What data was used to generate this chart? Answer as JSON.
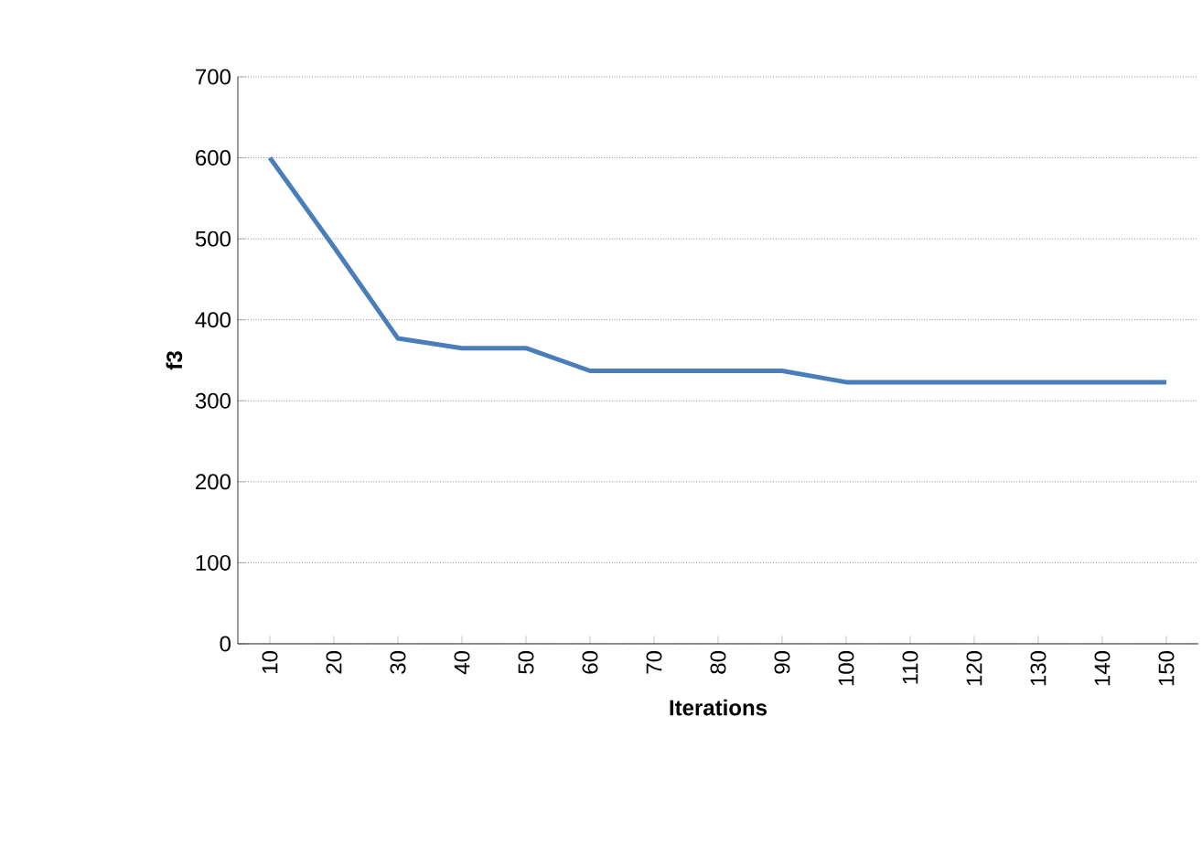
{
  "chart_data": {
    "type": "line",
    "xlabel": "Iterations",
    "ylabel": "f3",
    "categories": [
      "10",
      "20",
      "30",
      "40",
      "50",
      "60",
      "70",
      "80",
      "90",
      "100",
      "110",
      "120",
      "130",
      "140",
      "150"
    ],
    "series": [
      {
        "color": "#4a7ebb",
        "values": [
          600,
          490,
          377,
          365,
          365,
          337,
          337,
          337,
          337,
          323,
          323,
          323,
          323,
          323,
          323
        ]
      }
    ],
    "ylim": [
      0,
      700
    ],
    "yticks": [
      0,
      100,
      200,
      300,
      400,
      500,
      600,
      700
    ],
    "grid": "y",
    "marker": "none",
    "line_style": "solid"
  }
}
